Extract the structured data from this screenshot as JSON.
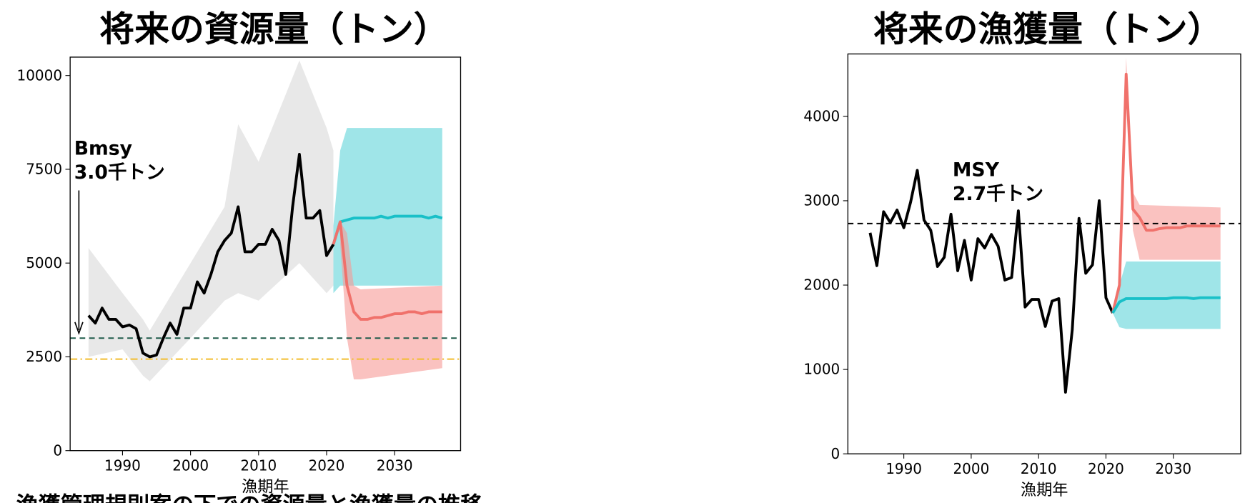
{
  "caption": "漁獲管理規則案の下での資源量と漁獲量の推移",
  "chart_data": [
    {
      "type": "line",
      "title": "将来の資源量（トン）",
      "xlabel": "漁期年",
      "xlim": [
        1982.3,
        2039.7
      ],
      "ylim": [
        0,
        10490
      ],
      "xticks": [
        1990,
        2000,
        2010,
        2020,
        2030
      ],
      "yticks": [
        0,
        2500,
        5000,
        7500,
        10000
      ],
      "annotation": [
        "Bmsy",
        "3.0千トン"
      ],
      "x": [
        1985,
        1986,
        1987,
        1988,
        1989,
        1990,
        1991,
        1992,
        1993,
        1994,
        1995,
        1996,
        1997,
        1998,
        1999,
        2000,
        2001,
        2002,
        2003,
        2004,
        2005,
        2006,
        2007,
        2008,
        2009,
        2010,
        2011,
        2012,
        2013,
        2014,
        2015,
        2016,
        2017,
        2018,
        2019,
        2020,
        2021,
        2022,
        2023,
        2024,
        2025,
        2026,
        2027,
        2028,
        2029,
        2030,
        2031,
        2032,
        2033,
        2034,
        2035,
        2036,
        2037
      ],
      "bands": [
        {
          "color": "#d9d9d9",
          "x": [
            1985,
            1990,
            1993,
            1994,
            2000,
            2005,
            2007,
            2010,
            2016,
            2020,
            2021
          ],
          "lower": [
            2500,
            2700,
            2000,
            1850,
            3000,
            4000,
            4200,
            4000,
            5000,
            4200,
            4400
          ],
          "upper": [
            5400,
            4200,
            3500,
            3200,
            5000,
            6500,
            8700,
            7700,
            10400,
            8600,
            8000
          ]
        },
        {
          "color": "#5fd3d9",
          "x": [
            2021,
            2022,
            2023,
            2037
          ],
          "lower": [
            4200,
            4400,
            4400,
            4400
          ],
          "upper": [
            6000,
            8000,
            8600,
            8600
          ]
        },
        {
          "color": "#f79a96",
          "x": [
            2022,
            2023,
            2024,
            2025,
            2037
          ],
          "lower": [
            5500,
            3000,
            1900,
            1900,
            2200
          ],
          "upper": [
            6100,
            5800,
            4400,
            4300,
            4400
          ]
        }
      ],
      "hlines": [
        {
          "value": 3000,
          "color": "#1f5b4a",
          "dash": "7 5"
        },
        {
          "value": 2440,
          "color": "#f2bd2e",
          "dash": "9 4 2 4"
        }
      ],
      "series": [
        {
          "color": "#000000",
          "width": 3.5,
          "values": [
            3600,
            3400,
            3800,
            3500,
            3500,
            3300,
            3350,
            3250,
            2600,
            2500,
            2550,
            3000,
            3400,
            3100,
            3800,
            3800,
            4500,
            4200,
            4700,
            5300,
            5600,
            5800,
            6500,
            5300,
            5300,
            5500,
            5500,
            5900,
            5600,
            4700,
            6500,
            7900,
            6200,
            6200,
            6400,
            5200,
            5500,
            null,
            null,
            null,
            null,
            null,
            null,
            null,
            null,
            null,
            null,
            null,
            null,
            null,
            null,
            null,
            null
          ]
        },
        {
          "color": "#19c0c8",
          "width": 3.5,
          "values": [
            null,
            null,
            null,
            null,
            null,
            null,
            null,
            null,
            null,
            null,
            null,
            null,
            null,
            null,
            null,
            null,
            null,
            null,
            null,
            null,
            null,
            null,
            null,
            null,
            null,
            null,
            null,
            null,
            null,
            null,
            null,
            null,
            null,
            null,
            null,
            null,
            5500,
            6100,
            6150,
            6200,
            6200,
            6200,
            6200,
            6250,
            6200,
            6250,
            6250,
            6250,
            6250,
            6250,
            6200,
            6250,
            6200
          ]
        },
        {
          "color": "#f0716b",
          "width": 3.5,
          "values": [
            null,
            null,
            null,
            null,
            null,
            null,
            null,
            null,
            null,
            null,
            null,
            null,
            null,
            null,
            null,
            null,
            null,
            null,
            null,
            null,
            null,
            null,
            null,
            null,
            null,
            null,
            null,
            null,
            null,
            null,
            null,
            null,
            null,
            null,
            null,
            null,
            5500,
            6100,
            4400,
            3700,
            3500,
            3500,
            3550,
            3550,
            3600,
            3650,
            3650,
            3700,
            3700,
            3650,
            3700,
            3700,
            3700
          ]
        }
      ]
    },
    {
      "type": "line",
      "title": "将来の漁獲量（トン）",
      "xlabel": "漁期年",
      "xlim": [
        1981.7,
        2040
      ],
      "ylim": [
        0,
        4740
      ],
      "xticks": [
        1990,
        2000,
        2010,
        2020,
        2030
      ],
      "yticks": [
        0,
        1000,
        2000,
        3000,
        4000
      ],
      "annotation": [
        "MSY",
        "2.7千トン"
      ],
      "x": [
        1985,
        1986,
        1987,
        1988,
        1989,
        1990,
        1991,
        1992,
        1993,
        1994,
        1995,
        1996,
        1997,
        1998,
        1999,
        2000,
        2001,
        2002,
        2003,
        2004,
        2005,
        2006,
        2007,
        2008,
        2009,
        2010,
        2011,
        2012,
        2013,
        2014,
        2015,
        2016,
        2017,
        2018,
        2019,
        2020,
        2021,
        2022,
        2023,
        2024,
        2025,
        2026,
        2027,
        2028,
        2029,
        2030,
        2031,
        2032,
        2033,
        2034,
        2035,
        2036,
        2037
      ],
      "bands": [
        {
          "color": "#f79a96",
          "x": [
            2022,
            2023,
            2024,
            2025,
            2037
          ],
          "lower": [
            1700,
            4300,
            2650,
            2300,
            2300
          ],
          "upper": [
            2000,
            4700,
            3100,
            2950,
            2920
          ]
        },
        {
          "color": "#5fd3d9",
          "x": [
            2021,
            2022,
            2023,
            2037
          ],
          "lower": [
            1670,
            1500,
            1480,
            1480
          ],
          "upper": [
            1670,
            2000,
            2280,
            2280
          ]
        }
      ],
      "hlines": [
        {
          "value": 2730,
          "color": "#000000",
          "dash": "7 5"
        }
      ],
      "series": [
        {
          "color": "#000000",
          "width": 3.5,
          "values": [
            2620,
            2230,
            2870,
            2740,
            2890,
            2680,
            2980,
            3360,
            2770,
            2650,
            2220,
            2330,
            2840,
            2170,
            2530,
            2060,
            2550,
            2440,
            2600,
            2460,
            2060,
            2090,
            2880,
            1740,
            1830,
            1830,
            1510,
            1810,
            1840,
            730,
            1470,
            2790,
            2140,
            2240,
            3000,
            1850,
            1670,
            null,
            null,
            null,
            null,
            null,
            null,
            null,
            null,
            null,
            null,
            null,
            null,
            null,
            null,
            null,
            null
          ]
        },
        {
          "color": "#f0716b",
          "width": 3.5,
          "values": [
            null,
            null,
            null,
            null,
            null,
            null,
            null,
            null,
            null,
            null,
            null,
            null,
            null,
            null,
            null,
            null,
            null,
            null,
            null,
            null,
            null,
            null,
            null,
            null,
            null,
            null,
            null,
            null,
            null,
            null,
            null,
            null,
            null,
            null,
            null,
            null,
            1670,
            2000,
            4500,
            2900,
            2800,
            2650,
            2650,
            2670,
            2680,
            2680,
            2680,
            2700,
            2700,
            2700,
            2700,
            2700,
            2700
          ]
        },
        {
          "color": "#19c0c8",
          "width": 3.5,
          "values": [
            null,
            null,
            null,
            null,
            null,
            null,
            null,
            null,
            null,
            null,
            null,
            null,
            null,
            null,
            null,
            null,
            null,
            null,
            null,
            null,
            null,
            null,
            null,
            null,
            null,
            null,
            null,
            null,
            null,
            null,
            null,
            null,
            null,
            null,
            null,
            null,
            1670,
            1800,
            1840,
            1840,
            1840,
            1840,
            1840,
            1840,
            1840,
            1850,
            1850,
            1850,
            1840,
            1850,
            1850,
            1850,
            1850
          ]
        }
      ]
    }
  ]
}
